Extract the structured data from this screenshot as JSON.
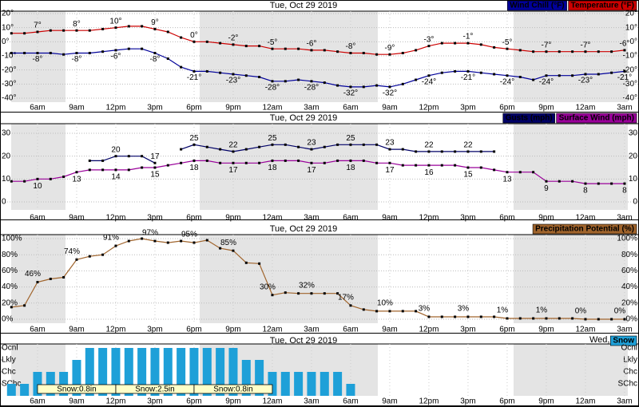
{
  "chart_data": [
    {
      "type": "line",
      "title": "Tue, Oct 29 2019",
      "categories": [
        null,
        null,
        "6am",
        null,
        null,
        "9am",
        null,
        null,
        "12pm",
        null,
        null,
        "3pm",
        null,
        null,
        "6pm",
        null,
        null,
        "9pm",
        null,
        null,
        "12am",
        null,
        null,
        "3am",
        null,
        null,
        "6am",
        null,
        null,
        "9am",
        null,
        null,
        "12pm",
        null,
        null,
        "3pm",
        null,
        null,
        "6pm",
        null,
        null,
        "9pm",
        null,
        null,
        "12am",
        null,
        null,
        "3am"
      ],
      "ylim": [
        -40,
        20
      ],
      "yticks": [
        {
          "value": 20,
          "label": "20°"
        },
        {
          "value": 10,
          "label": "10°"
        },
        {
          "value": 0,
          "label": "0°"
        },
        {
          "value": -10,
          "label": "-10°"
        },
        {
          "value": -20,
          "label": "-20°"
        },
        {
          "value": -30,
          "label": "-30°"
        },
        {
          "value": -40,
          "label": "-40°"
        }
      ],
      "grid": true,
      "series": [
        {
          "name": "Wind Chill (°F)",
          "color": "#000099",
          "values": [
            -8,
            -8,
            -8,
            -8,
            -9,
            -8,
            -8,
            -7,
            -6,
            -5,
            -5,
            -8,
            -12,
            -18,
            -21,
            -21,
            -22,
            -23,
            -24,
            -25,
            -28,
            -28,
            -27,
            -28,
            -29,
            -31,
            -32,
            -32,
            -31,
            -32,
            -30,
            -27,
            -24,
            -22,
            -21,
            -21,
            -22,
            -23,
            -24,
            -25,
            -27,
            -24,
            -24,
            -24,
            -23,
            -23,
            -22,
            -21
          ],
          "value_labels": [
            null,
            null,
            "-8°",
            null,
            null,
            "-8°",
            null,
            null,
            "-6°",
            null,
            null,
            "-8°",
            null,
            null,
            "-21°",
            null,
            null,
            "-23°",
            null,
            null,
            "-28°",
            null,
            null,
            "-28°",
            null,
            null,
            "-32°",
            null,
            null,
            "-32°",
            null,
            null,
            "-24°",
            null,
            null,
            "-21°",
            null,
            null,
            "-24°",
            null,
            null,
            "-24°",
            null,
            null,
            "-23°",
            null,
            null,
            "-21°"
          ]
        },
        {
          "name": "Temperature (°F)",
          "color": "#cc0000",
          "values": [
            6,
            6,
            7,
            8,
            8,
            8,
            8,
            9,
            10,
            11,
            11,
            9,
            7,
            3,
            0,
            0,
            -1,
            -2,
            -3,
            -3,
            -5,
            -5,
            -5,
            -6,
            -6,
            -7,
            -8,
            -8,
            -9,
            -9,
            -8,
            -6,
            -3,
            -1,
            -1,
            -1,
            -2,
            -4,
            -5,
            -6,
            -7,
            -7,
            -7,
            -7,
            -7,
            -7,
            -7,
            -6
          ],
          "value_labels": [
            null,
            null,
            "7°",
            null,
            null,
            "8°",
            null,
            null,
            "10°",
            null,
            null,
            "9°",
            null,
            null,
            "0°",
            null,
            null,
            "-2°",
            null,
            null,
            "-5°",
            null,
            null,
            "-6°",
            null,
            null,
            "-8°",
            null,
            null,
            "-9°",
            null,
            null,
            "-3°",
            null,
            null,
            "-1°",
            null,
            null,
            "-5°",
            null,
            null,
            "-7°",
            null,
            null,
            "-7°",
            null,
            null,
            "-6°"
          ]
        }
      ]
    },
    {
      "type": "line",
      "title": "Tue, Oct 29 2019",
      "ylim": [
        0,
        30
      ],
      "yticks": [
        30,
        20,
        10,
        0
      ],
      "grid": true,
      "series": [
        {
          "name": "Gusts (mph)",
          "color": "#000066",
          "values": [
            null,
            null,
            null,
            null,
            null,
            null,
            18,
            18,
            20,
            20,
            20,
            17,
            null,
            23,
            25,
            24,
            23,
            22,
            23,
            24,
            25,
            25,
            24,
            23,
            24,
            25,
            25,
            25,
            25,
            23,
            23,
            22,
            22,
            22,
            22,
            22,
            22,
            22,
            null,
            null,
            null,
            null,
            null,
            null,
            null,
            null,
            null,
            null
          ],
          "value_labels": [
            null,
            null,
            null,
            null,
            null,
            null,
            null,
            null,
            "20",
            null,
            null,
            "17",
            null,
            null,
            "25",
            null,
            null,
            "22",
            null,
            null,
            "25",
            null,
            null,
            "23",
            null,
            null,
            "25",
            null,
            null,
            "23",
            null,
            null,
            "22",
            null,
            null,
            "22",
            null,
            null,
            null,
            null,
            null,
            null,
            null,
            null,
            null,
            null,
            null,
            null
          ]
        },
        {
          "name": "Surface Wind (mph)",
          "color": "#990099",
          "values": [
            9,
            9,
            10,
            10,
            11,
            13,
            14,
            14,
            14,
            14,
            15,
            15,
            16,
            17,
            18,
            18,
            17,
            17,
            17,
            17,
            18,
            18,
            18,
            17,
            17,
            18,
            18,
            18,
            17,
            17,
            16,
            16,
            16,
            16,
            16,
            15,
            15,
            14,
            13,
            13,
            13,
            9,
            9,
            9,
            8,
            8,
            8,
            8
          ],
          "value_labels": [
            null,
            null,
            "10",
            null,
            null,
            "13",
            null,
            null,
            "14",
            null,
            null,
            "15",
            null,
            null,
            "18",
            null,
            null,
            "17",
            null,
            null,
            "18",
            null,
            null,
            "17",
            null,
            null,
            "18",
            null,
            null,
            "17",
            null,
            null,
            "16",
            null,
            null,
            "15",
            null,
            null,
            "13",
            null,
            null,
            "9",
            null,
            null,
            "8",
            null,
            null,
            "8"
          ]
        }
      ]
    },
    {
      "type": "line",
      "title": "Tue, Oct 29 2019",
      "ylim": [
        0,
        100
      ],
      "yticks": [
        {
          "value": 100,
          "label": "100%"
        },
        {
          "value": 80,
          "label": "80%"
        },
        {
          "value": 60,
          "label": "60%"
        },
        {
          "value": 40,
          "label": "40%"
        },
        {
          "value": 20,
          "label": "20%"
        },
        {
          "value": 0,
          "label": "0%"
        }
      ],
      "grid": true,
      "series": [
        {
          "name": "Precipitation Potential (%)",
          "color": "#a0642c",
          "values": [
            15,
            17,
            46,
            50,
            52,
            74,
            78,
            80,
            91,
            97,
            100,
            97,
            95,
            97,
            95,
            98,
            88,
            85,
            70,
            69,
            30,
            33,
            32,
            32,
            32,
            32,
            17,
            12,
            10,
            10,
            10,
            10,
            3,
            3,
            3,
            3,
            3,
            3,
            1,
            1,
            1,
            1,
            1,
            1,
            0,
            0,
            0,
            0
          ],
          "value_labels": [
            null,
            null,
            "46%",
            null,
            null,
            "74%",
            null,
            null,
            "91%",
            null,
            null,
            "97%",
            null,
            null,
            "95%",
            null,
            null,
            "85%",
            null,
            null,
            "30%",
            null,
            null,
            "32%",
            null,
            null,
            "17%",
            null,
            null,
            "10%",
            null,
            null,
            "3%",
            null,
            null,
            "3%",
            null,
            null,
            "1%",
            null,
            null,
            "1%",
            null,
            null,
            "0%",
            null,
            null,
            "0%"
          ]
        }
      ]
    },
    {
      "type": "bar",
      "title": "Tue, Oct 29 2019",
      "date_label": "Wed,",
      "ylim": [
        0,
        4
      ],
      "yticks": [
        {
          "value": 4,
          "label": "Ocnl"
        },
        {
          "value": 3,
          "label": "Lkly"
        },
        {
          "value": 2,
          "label": "Chc"
        },
        {
          "value": 1,
          "label": "SChc"
        }
      ],
      "annotations": [
        "Snow:0.8in",
        "Snow:2.5in",
        "Snow:0.8in"
      ],
      "series": [
        {
          "name": "Snow",
          "color": "#1ea0d8",
          "values": [
            1,
            1,
            2,
            2,
            2,
            3,
            4,
            4,
            4,
            4,
            4,
            4,
            4,
            4,
            4,
            4,
            4,
            4,
            3,
            3,
            2,
            2,
            2,
            2,
            2,
            2,
            1,
            null,
            null,
            null,
            null,
            null,
            null,
            null,
            null,
            null,
            null,
            null,
            null,
            null,
            null,
            null,
            null,
            null,
            null,
            null,
            null,
            null
          ]
        }
      ]
    }
  ]
}
